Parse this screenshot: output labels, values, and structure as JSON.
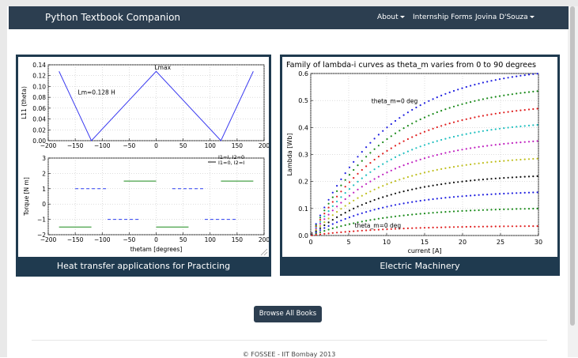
{
  "navbar": {
    "brand": "Python Textbook Companion",
    "items": [
      {
        "label": "About",
        "dropdown": true
      },
      {
        "label": "Internship Forms",
        "dropdown": false
      },
      {
        "label": "Jovina D'Souza",
        "dropdown": true
      }
    ]
  },
  "cards": [
    {
      "caption": "Heat transfer applications for Practicing"
    },
    {
      "caption": "Electric Machinery"
    }
  ],
  "browse_button": "Browse All Books",
  "footer": "© FOSSEE - IIT Bombay 2013",
  "chart_data": [
    {
      "type": "line",
      "ylabel": "L11 (theta)",
      "x": [
        -180,
        -120,
        0,
        120,
        180
      ],
      "y": [
        0.128,
        0,
        0.128,
        0,
        0.128
      ],
      "xlim": [
        -200,
        200
      ],
      "ylim": [
        0,
        0.14
      ],
      "xticks": [
        "−200",
        "−150",
        "−100",
        "−50",
        "0",
        "50",
        "100",
        "150",
        "200"
      ],
      "yticks": [
        "0.00",
        "0.02",
        "0.04",
        "0.06",
        "0.08",
        "0.10",
        "0.12",
        "0.14"
      ],
      "annotations": [
        "Lm=0.128 H",
        "Lmax"
      ],
      "grid": true
    },
    {
      "type": "line",
      "ylabel": "Torque [N m]",
      "xlabel": "thetam [degrees]",
      "xlim": [
        -200,
        200
      ],
      "ylim": [
        -2,
        3
      ],
      "xticks": [
        "−200",
        "−150",
        "−100",
        "−50",
        "0",
        "50",
        "100",
        "150",
        "200"
      ],
      "yticks": [
        "−2",
        "−1",
        "0",
        "1",
        "2",
        "3"
      ],
      "legend": [
        "I1=0, I2=I",
        "I1=I, I2=0"
      ],
      "legend_position": "top-right",
      "series": [
        {
          "segments": [
            [
              -150,
              -90,
              1
            ],
            [
              -90,
              -30,
              -1
            ],
            [
              30,
              90,
              1
            ],
            [
              90,
              150,
              -1
            ]
          ],
          "color": "#2a3cf0",
          "dash": true
        },
        {
          "segments": [
            [
              -180,
              -120,
              -1.5
            ],
            [
              -60,
              0,
              1.5
            ],
            [
              0,
              60,
              -1.5
            ],
            [
              120,
              180,
              1.5
            ]
          ],
          "color": "#1a8a1a",
          "dash": false
        }
      ],
      "grid": true
    },
    {
      "type": "scatter",
      "title": "Family of lambda-i curves as theta_m varies from 0 to 90 degrees",
      "xlabel": "current [A]",
      "ylabel": "Lambda [Wb]",
      "xlim": [
        0,
        30
      ],
      "ylim": [
        0,
        0.6
      ],
      "xticks": [
        "0",
        "5",
        "10",
        "15",
        "20",
        "25",
        "30"
      ],
      "yticks": [
        "0.0",
        "0.1",
        "0.2",
        "0.3",
        "0.4",
        "0.5",
        "0.6"
      ],
      "annotations": [
        "theta_m=0 deg",
        "theta_m=0 deg"
      ],
      "series": [
        {
          "color": "#1f1fe0",
          "end": 0.6
        },
        {
          "color": "#1a8a1a",
          "end": 0.535
        },
        {
          "color": "#e01f1f",
          "end": 0.47
        },
        {
          "color": "#1fbfbf",
          "end": 0.41
        },
        {
          "color": "#bf1fbf",
          "end": 0.35
        },
        {
          "color": "#bfbf1f",
          "end": 0.285
        },
        {
          "color": "#111111",
          "end": 0.22
        },
        {
          "color": "#1f1fe0",
          "end": 0.16
        },
        {
          "color": "#1a8a1a",
          "end": 0.1
        },
        {
          "color": "#e01f1f",
          "end": 0.035
        }
      ],
      "grid": true
    }
  ]
}
